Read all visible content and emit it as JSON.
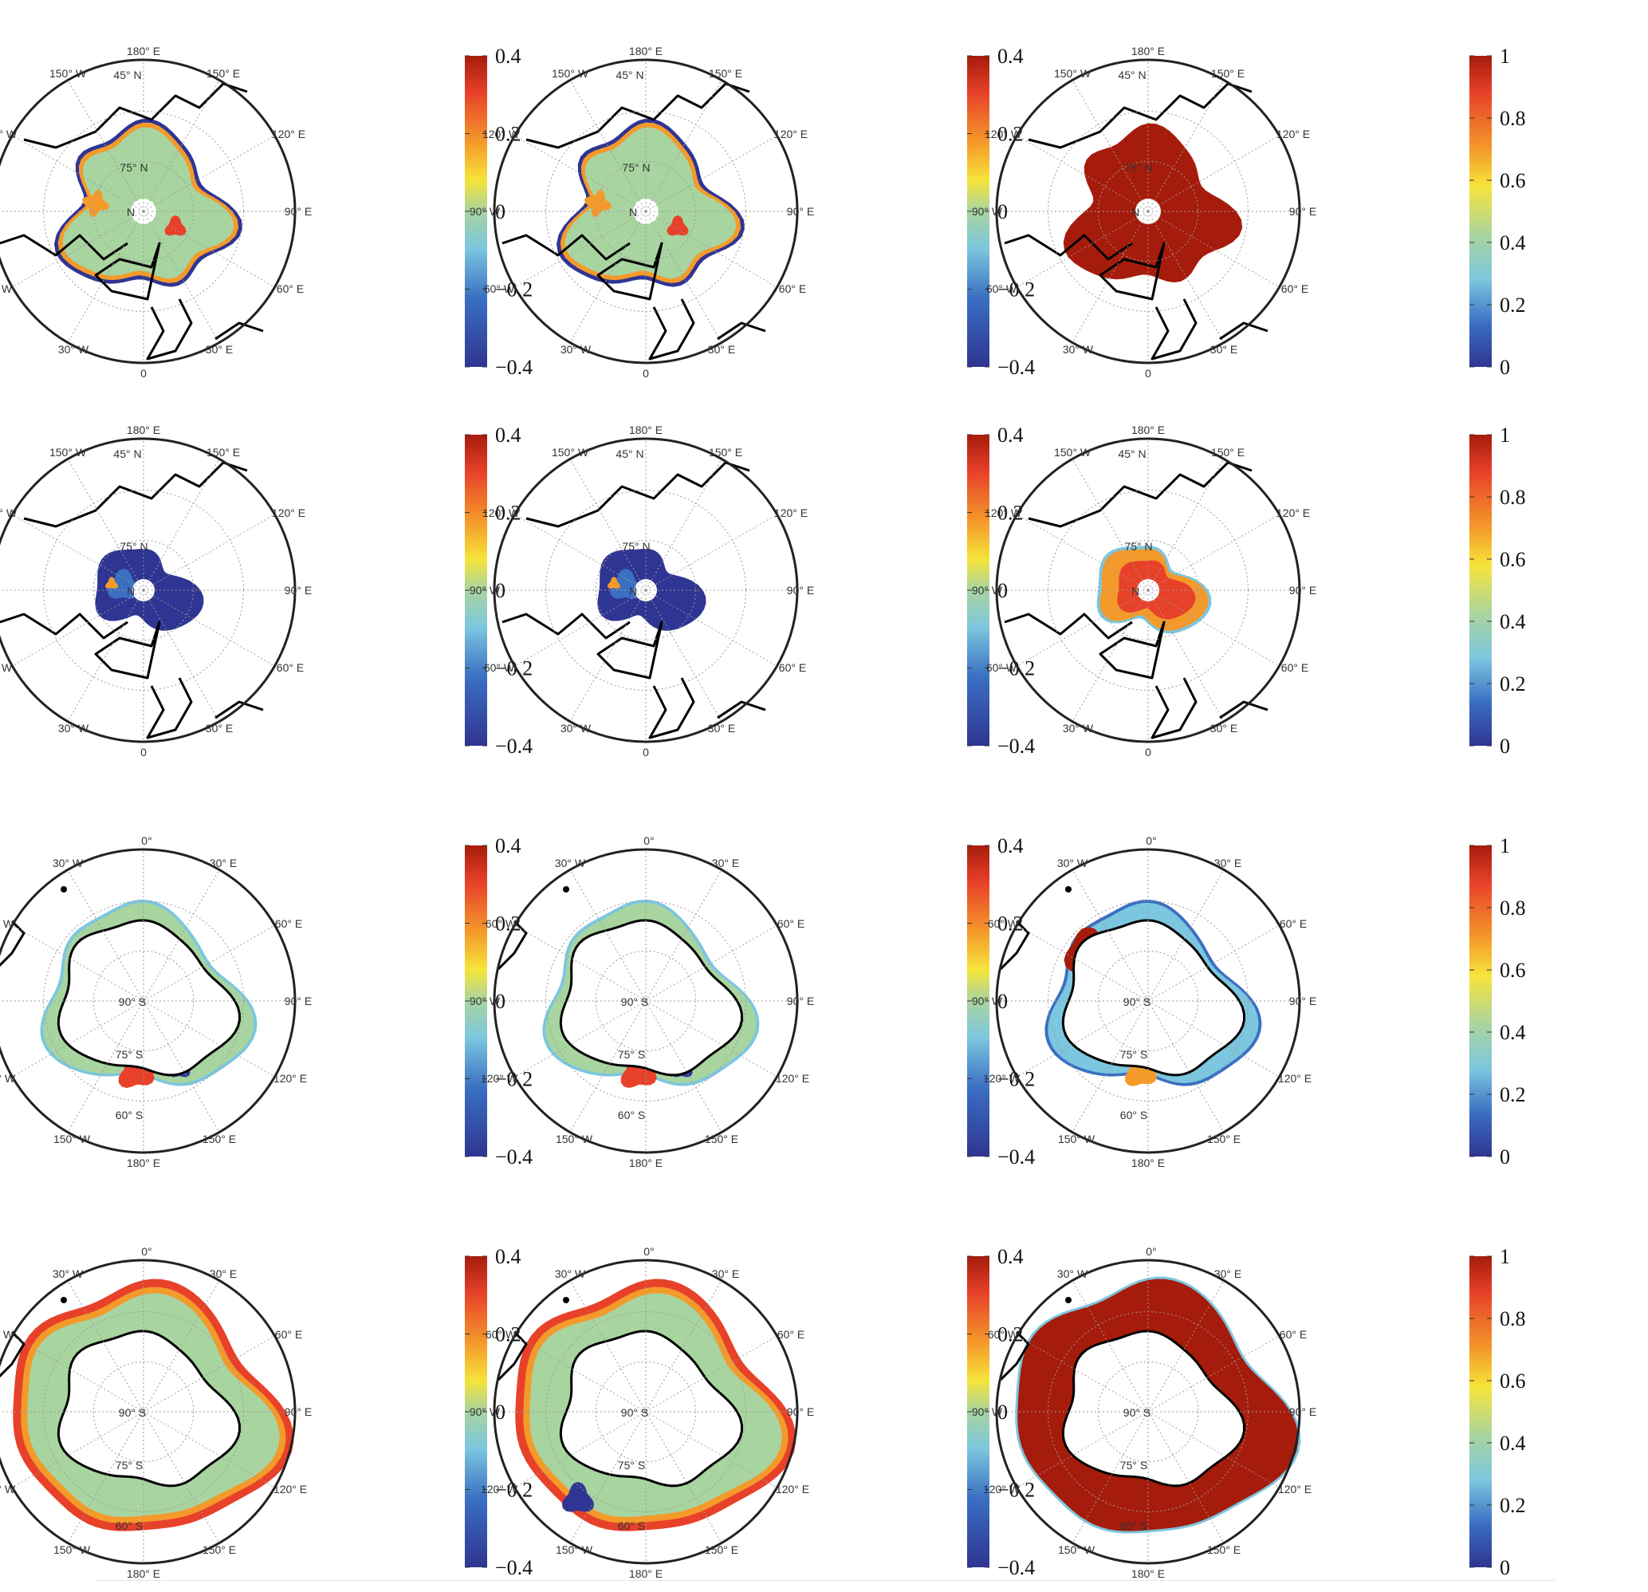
{
  "figure": {
    "rows": [
      {
        "hemisphere": "north",
        "panels": [
          "diff",
          "diff",
          "ratio"
        ]
      },
      {
        "hemisphere": "north",
        "panels": [
          "diff",
          "diff",
          "ratio"
        ]
      },
      {
        "hemisphere": "south",
        "panels": [
          "diff",
          "diff",
          "ratio"
        ]
      },
      {
        "hemisphere": "south",
        "panels": [
          "diff",
          "diff",
          "ratio"
        ]
      }
    ]
  },
  "map_labels": {
    "north": {
      "lon_top": "180° E",
      "lon_bottom": "0",
      "lon_left": "90° W",
      "lon_right": "90° E",
      "lon_150w": "150° W",
      "lon_150e": "150° E",
      "lon_120w": "120° W",
      "lon_120e": "120° E",
      "lon_60w": "60° W",
      "lon_60e": "60° E",
      "lon_30w": "30° W",
      "lon_30e": "30° E",
      "lat_45": "45° N",
      "lat_75": "75° N",
      "lat_90": "N"
    },
    "south": {
      "lon_top": "0°",
      "lon_bottom": "180° E",
      "lon_left": "90° W",
      "lon_right": "90° E",
      "lon_30w": "30° W",
      "lon_30e": "30° E",
      "lon_60w": "60° W",
      "lon_60e": "60° E",
      "lon_120w": "120° W",
      "lon_120e": "120° E",
      "lon_150w": "150° W",
      "lon_150e": "150° E",
      "lat_60": "60° S",
      "lat_75": "75° S",
      "lat_90": "90° S"
    }
  },
  "colorbars": {
    "diff": {
      "ticks": [
        "0.4",
        "0.2",
        "0",
        "−0.2",
        "−0.4"
      ],
      "range": [
        -0.4,
        0.4
      ]
    },
    "ratio": {
      "ticks": [
        "1",
        "0.8",
        "0.6",
        "0.4",
        "0.2",
        "0"
      ],
      "range": [
        0,
        1
      ]
    }
  },
  "colors": {
    "dark_red": "#a61c0c",
    "red": "#e8412a",
    "orange": "#f49a2a",
    "yellow": "#f6e43a",
    "neutral_green": "#a8d4a0",
    "light_blue": "#7cc6df",
    "blue": "#3a6fc2",
    "dark_blue": "#2f3592",
    "coast": "#000000",
    "grid": "#9a9a9a"
  }
}
